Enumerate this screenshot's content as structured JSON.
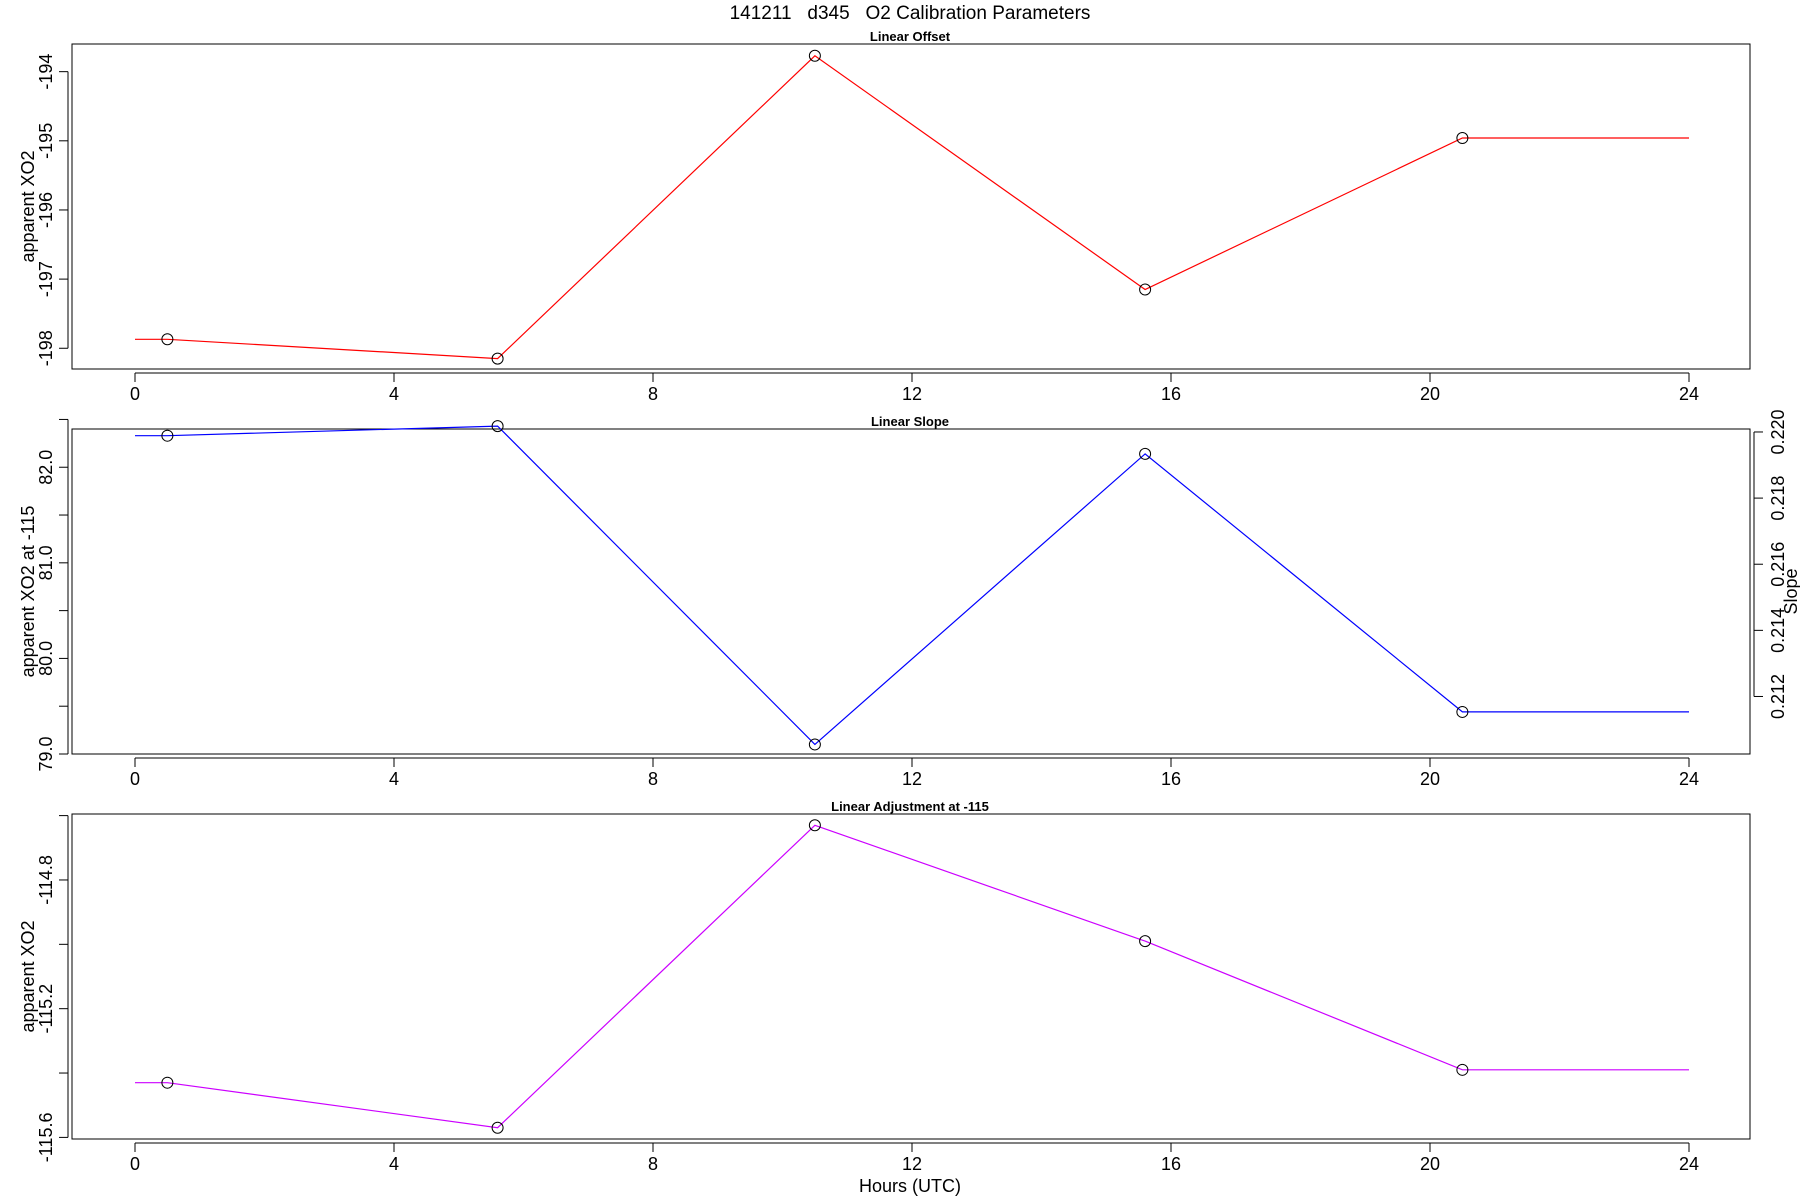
{
  "figure_title": "141211   d345   O2 Calibration Parameters",
  "xlabel": "Hours (UTC)",
  "colors": {
    "offset": "#ff0000",
    "slope": "#0000ff",
    "adjustment": "#cc00ff",
    "markers": "#000000",
    "frame": "#000000"
  },
  "chart_data": [
    {
      "type": "line",
      "title": "Linear Offset",
      "xlabel": "",
      "ylabel": "apparent XO2",
      "xlim": [
        0,
        24
      ],
      "xticks": [
        0,
        4,
        8,
        12,
        16,
        20,
        24
      ],
      "ylim": [
        -198.3,
        -193.6
      ],
      "yticks": [
        -198,
        -197,
        -196,
        -195,
        -194
      ],
      "ytick_labels": [
        "-198",
        "-197",
        "-196",
        "-195",
        "-194"
      ],
      "x": [
        0.5,
        5.6,
        10.5,
        15.6,
        20.5,
        24
      ],
      "y": [
        -197.87,
        -198.15,
        -193.77,
        -197.15,
        -194.96,
        -194.96
      ],
      "markers": [
        true,
        true,
        true,
        true,
        true,
        false
      ],
      "grid": false,
      "legend": "none"
    },
    {
      "type": "line",
      "title": "Linear Slope",
      "xlabel": "",
      "ylabel": "apparent XO2 at -115",
      "ylabel_right": "Slope",
      "xlim": [
        0,
        24
      ],
      "xticks": [
        0,
        4,
        8,
        12,
        16,
        20,
        24
      ],
      "ylim": [
        79.0,
        82.4
      ],
      "yticks": [
        79.0,
        79.5,
        80.0,
        80.5,
        81.0,
        81.5,
        82.0,
        82.5
      ],
      "ytick_labels": [
        "79.0",
        "",
        "80.0",
        "",
        "81.0",
        "",
        "82.0",
        ""
      ],
      "y2_lim": [
        0.21026,
        0.22009
      ],
      "y2ticks": [
        0.212,
        0.214,
        0.216,
        0.218,
        0.22
      ],
      "y2tick_labels": [
        "0.212",
        "0.214",
        "0.216",
        "0.218",
        "0.220"
      ],
      "x": [
        0.5,
        5.6,
        10.5,
        15.6,
        20.5,
        24
      ],
      "y": [
        82.33,
        82.43,
        79.1,
        82.14,
        79.44,
        79.44
      ],
      "markers": [
        true,
        true,
        true,
        true,
        true,
        false
      ],
      "grid": false,
      "legend": "none"
    },
    {
      "type": "line",
      "title": "Linear Adjustment at -115",
      "xlabel": "Hours (UTC)",
      "ylabel": "apparent XO2",
      "xlim": [
        0,
        24
      ],
      "xticks": [
        0,
        4,
        8,
        12,
        16,
        20,
        24
      ],
      "ylim": [
        -115.605,
        -114.595
      ],
      "yticks": [
        -115.6,
        -115.4,
        -115.2,
        -115.0,
        -114.8,
        -114.6
      ],
      "ytick_labels": [
        "-115.6",
        "",
        "-115.2",
        "",
        "-114.8",
        ""
      ],
      "x": [
        0.5,
        5.6,
        10.5,
        15.6,
        20.5,
        24
      ],
      "y": [
        -115.43,
        -115.57,
        -114.63,
        -114.99,
        -115.39,
        -115.39
      ],
      "markers": [
        true,
        true,
        true,
        true,
        true,
        false
      ],
      "grid": false,
      "legend": "none"
    }
  ]
}
